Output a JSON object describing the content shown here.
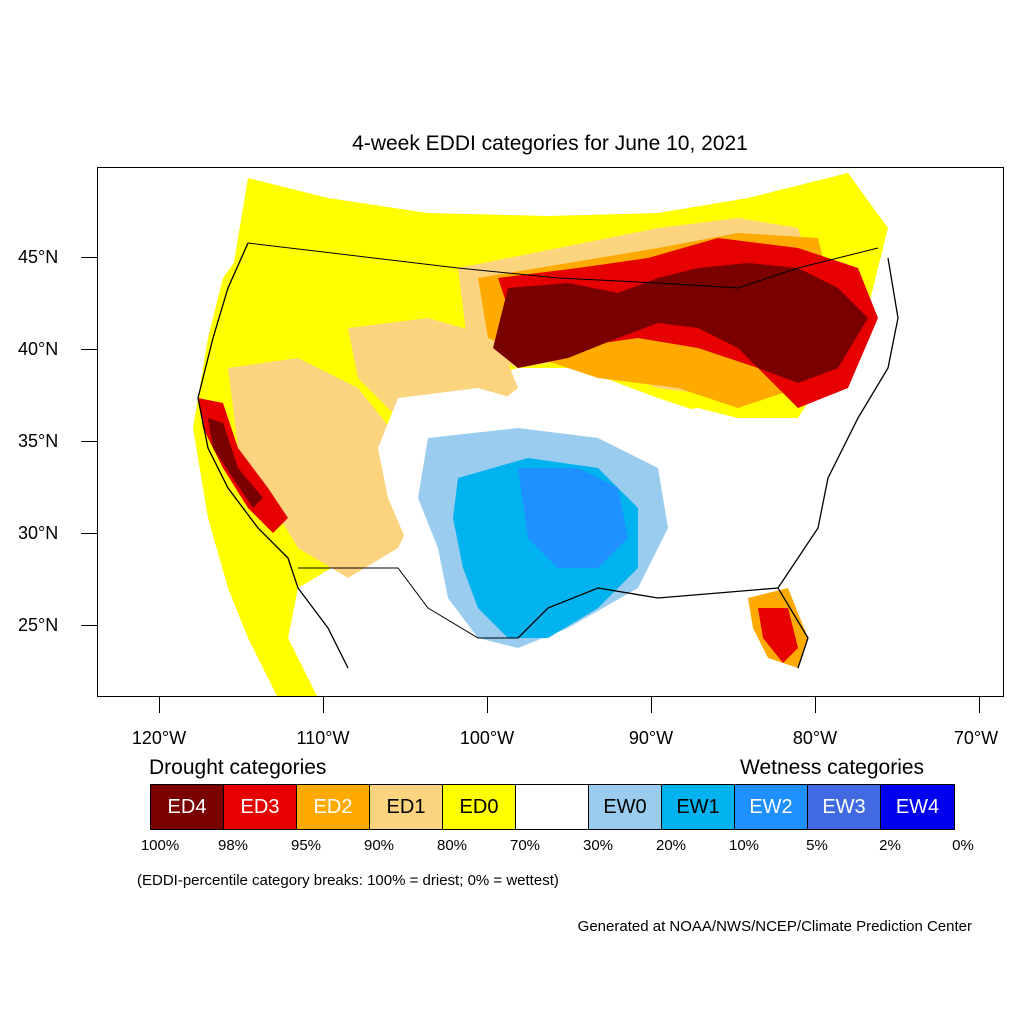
{
  "title": "4-week EDDI categories for June 10, 2021",
  "map": {
    "lat_labels": [
      "45°N",
      "40°N",
      "35°N",
      "30°N",
      "25°N"
    ],
    "lon_labels": [
      "120°W",
      "110°W",
      "100°W",
      "90°W",
      "80°W",
      "70°W"
    ]
  },
  "legend": {
    "drought_heading": "Drought categories",
    "wetness_heading": "Wetness categories",
    "categories": [
      {
        "label": "ED4",
        "color": "#7a0000",
        "text_color": "#ffffff"
      },
      {
        "label": "ED3",
        "color": "#e60000",
        "text_color": "#ffffff"
      },
      {
        "label": "ED2",
        "color": "#ffaa00",
        "text_color": "#ffffff"
      },
      {
        "label": "ED1",
        "color": "#fcd37f",
        "text_color": "#000000"
      },
      {
        "label": "ED0",
        "color": "#ffff00",
        "text_color": "#000000"
      },
      {
        "label": "",
        "color": "#ffffff",
        "text_color": "#000000"
      },
      {
        "label": "EW0",
        "color": "#99ccee",
        "text_color": "#000000"
      },
      {
        "label": "EW1",
        "color": "#00b2ee",
        "text_color": "#000000"
      },
      {
        "label": "EW2",
        "color": "#1e90ff",
        "text_color": "#ffffff"
      },
      {
        "label": "EW3",
        "color": "#4169e1",
        "text_color": "#ffffff"
      },
      {
        "label": "EW4",
        "color": "#0000ee",
        "text_color": "#ffffff"
      }
    ],
    "percentiles": [
      "100%",
      "98%",
      "95%",
      "90%",
      "80%",
      "70%",
      "30%",
      "20%",
      "10%",
      "5%",
      "2%",
      "0%"
    ]
  },
  "note": "(EDDI-percentile category breaks: 100% = driest; 0% = wettest)",
  "credit": "Generated at NOAA/NWS/NCEP/Climate Prediction Center"
}
